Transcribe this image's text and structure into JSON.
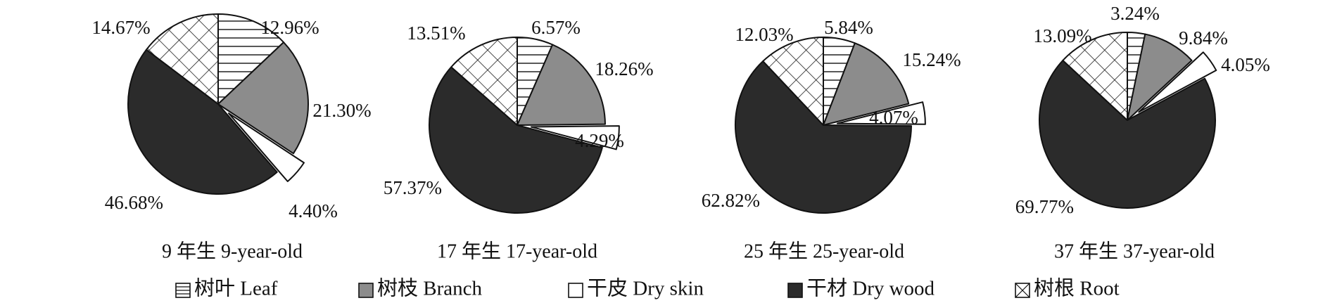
{
  "chart_data": [
    {
      "type": "pie",
      "subtitle": "9 年生 9-year-old",
      "slices": [
        {
          "category": "树叶 Leaf",
          "value": 12.96,
          "label": "12.96%"
        },
        {
          "category": "树枝 Branch",
          "value": 21.3,
          "label": "21.30%"
        },
        {
          "category": "干皮 Dry skin",
          "value": 4.4,
          "label": "4.40%"
        },
        {
          "category": "干材 Dry wood",
          "value": 46.68,
          "label": "46.68%"
        },
        {
          "category": "树根 Root",
          "value": 14.67,
          "label": "14.67%"
        }
      ]
    },
    {
      "type": "pie",
      "subtitle": "17 年生 17-year-old",
      "slices": [
        {
          "category": "树叶 Leaf",
          "value": 6.57,
          "label": "6.57%"
        },
        {
          "category": "树枝 Branch",
          "value": 18.26,
          "label": "18.26%"
        },
        {
          "category": "干皮 Dry skin",
          "value": 4.29,
          "label": "4.29%"
        },
        {
          "category": "干材 Dry wood",
          "value": 57.37,
          "label": "57.37%"
        },
        {
          "category": "树根 Root",
          "value": 13.51,
          "label": "13.51%"
        }
      ]
    },
    {
      "type": "pie",
      "subtitle": "25 年生 25-year-old",
      "slices": [
        {
          "category": "树叶 Leaf",
          "value": 5.84,
          "label": "5.84%"
        },
        {
          "category": "树枝 Branch",
          "value": 15.24,
          "label": "15.24%"
        },
        {
          "category": "干皮 Dry skin",
          "value": 4.07,
          "label": "4.07%"
        },
        {
          "category": "干材 Dry wood",
          "value": 62.82,
          "label": "62.82%"
        },
        {
          "category": "树根 Root",
          "value": 12.03,
          "label": "12.03%"
        }
      ]
    },
    {
      "type": "pie",
      "subtitle": "37 年生 37-year-old",
      "slices": [
        {
          "category": "树叶 Leaf",
          "value": 3.24,
          "label": "3.24%"
        },
        {
          "category": "树枝 Branch",
          "value": 9.84,
          "label": "9.84%"
        },
        {
          "category": "干皮 Dry skin",
          "value": 4.05,
          "label": "4.05%"
        },
        {
          "category": "干材 Dry wood",
          "value": 69.77,
          "label": "69.77%"
        },
        {
          "category": "树根 Root",
          "value": 13.09,
          "label": "13.09%"
        }
      ]
    }
  ],
  "legend": [
    {
      "label": "树叶 Leaf",
      "pattern": "horizontal-lines"
    },
    {
      "label": "树枝 Branch",
      "pattern": "solid-gray"
    },
    {
      "label": "干皮 Dry skin",
      "pattern": "white"
    },
    {
      "label": "干材 Dry wood",
      "pattern": "solid-dark"
    },
    {
      "label": "树根 Root",
      "pattern": "crosshatch"
    }
  ],
  "colors": {
    "Branch": "#8c8c8c",
    "Dry wood": "#2b2b2b",
    "Dry skin": "#ffffff",
    "outline": "#111111"
  }
}
